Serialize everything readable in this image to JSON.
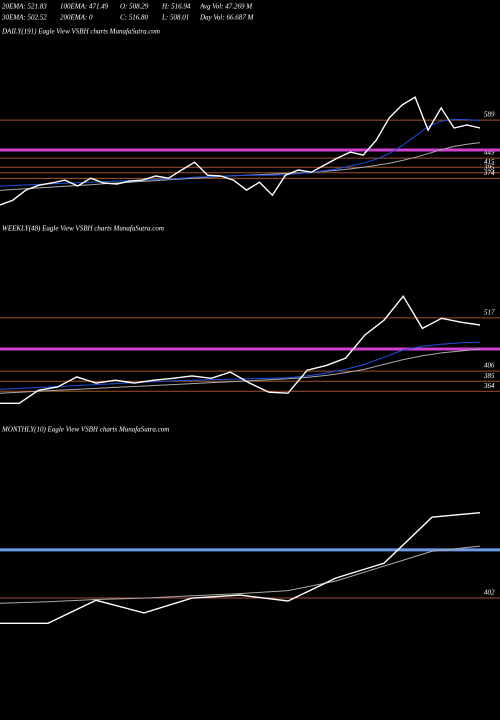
{
  "header": {
    "rows": [
      [
        "20EMA: 521.83",
        "100EMA: 471.49",
        "O: 508.29",
        "H: 516.94",
        "Avg Vol: 47.269 M"
      ],
      [
        "30EMA: 502.52",
        "200EMA: 0",
        "C: 516.80",
        "L: 508.01",
        "Day Vol: 66.687 M"
      ]
    ]
  },
  "chart_data": [
    {
      "type": "line",
      "title": "DAILY(191) Eagle   View  VSBH charts MunafaSutra.com",
      "ylim": [
        276,
        866
      ],
      "levels": [
        589,
        449,
        415,
        395,
        374
      ],
      "level_color": "#a0522d",
      "band": 479,
      "band_color": "#d040d0",
      "series": [
        {
          "color": "#aaaaaa",
          "values": [
            330,
            333,
            336,
            339,
            342,
            345,
            348,
            351,
            354,
            357,
            360,
            363,
            366,
            369,
            372,
            375,
            378,
            381,
            384,
            386,
            388,
            390,
            392,
            394,
            397,
            400,
            404,
            409,
            415,
            422,
            430,
            440,
            452,
            465,
            480,
            492,
            500,
            506
          ]
        },
        {
          "color": "#1f4fe0",
          "values": [
            345,
            348,
            350,
            352,
            354,
            356,
            358,
            360,
            362,
            364,
            366,
            368,
            370,
            372,
            375,
            378,
            380,
            382,
            384,
            385,
            386,
            386,
            388,
            392,
            396,
            402,
            410,
            420,
            430,
            445,
            465,
            495,
            530,
            565,
            585,
            592,
            590,
            588
          ]
        },
        {
          "color": "#ffffff",
          "values": [
            276,
            294,
            331,
            349,
            357,
            368,
            346,
            375,
            357,
            353,
            364,
            368,
            383,
            375,
            405,
            434,
            386,
            383,
            368,
            331,
            360,
            312,
            386,
            405,
            397,
            423,
            449,
            471,
            460,
            515,
            597,
            645,
            674,
            552,
            634,
            560,
            571,
            560
          ]
        }
      ]
    },
    {
      "type": "line",
      "title": "WEEKLY(48) Eagle   View  VSBH charts MunafaSutra.com",
      "ylim": [
        325,
        700
      ],
      "levels": [
        517,
        406,
        385,
        364
      ],
      "level_color": "#a0522d",
      "band": 452,
      "band_color": "#d040d0",
      "series": [
        {
          "color": "#aaaaaa",
          "values": [
            360,
            362,
            364,
            366,
            368,
            370,
            372,
            374,
            376,
            378,
            380,
            382,
            384,
            386,
            388,
            390,
            393,
            397,
            403,
            410,
            420,
            430,
            438,
            444,
            448,
            452
          ]
        },
        {
          "color": "#1f4fe0",
          "values": [
            368,
            370,
            372,
            374,
            376,
            378,
            380,
            382,
            384,
            386,
            387,
            388,
            389,
            390,
            391,
            392,
            396,
            402,
            410,
            420,
            435,
            450,
            458,
            462,
            465,
            466
          ]
        },
        {
          "color": "#ffffff",
          "values": [
            339,
            339,
            366,
            373,
            394,
            381,
            387,
            381,
            387,
            391,
            396,
            391,
            404,
            381,
            362,
            360,
            408,
            418,
            433,
            481,
            512,
            562,
            495,
            516,
            508,
            502
          ]
        }
      ]
    },
    {
      "type": "line",
      "title": "MONTHLY(10) Eagle   View  VSBH charts MunafaSutra.com",
      "ylim": [
        332,
        615
      ],
      "levels": [
        402
      ],
      "level_color": "#a0522d",
      "band": 467,
      "band_color": "#6a9ae8",
      "series": [
        {
          "color": "#aaaaaa",
          "values": [
            395,
            397,
            400,
            402,
            405,
            408,
            412,
            425,
            445,
            465,
            472
          ]
        },
        {
          "color": "#ffffff",
          "values": [
            368,
            368,
            399,
            382,
            402,
            406,
            398,
            429,
            449,
            511,
            517
          ]
        }
      ]
    }
  ]
}
